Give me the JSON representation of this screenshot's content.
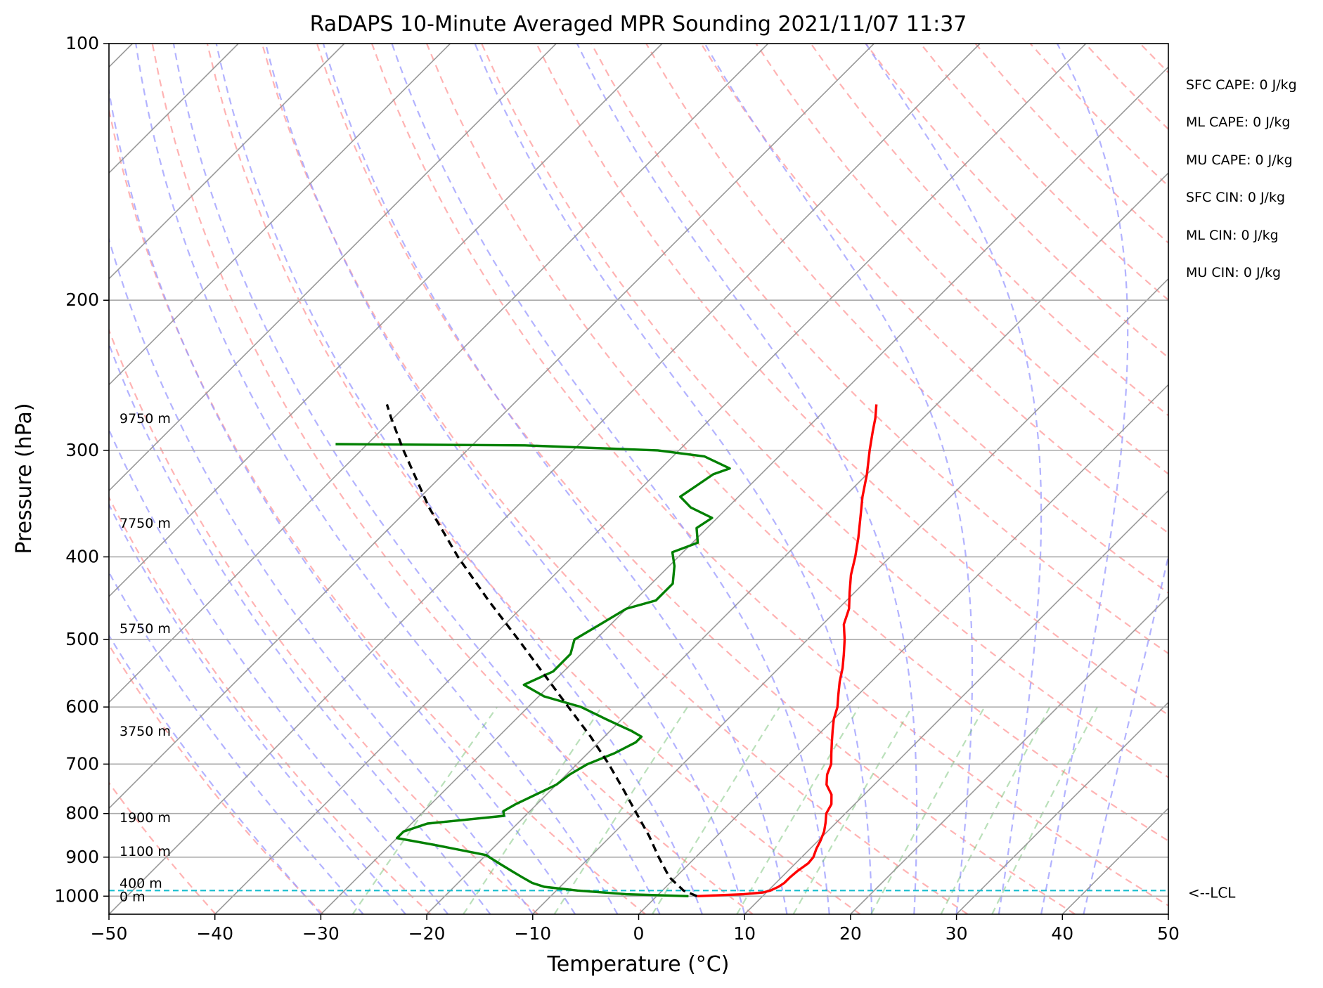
{
  "chart_data": {
    "type": "line",
    "title": "RaDAPS 10-Minute Averaged MPR Sounding 2021/11/07 11:37",
    "xlabel": "Temperature (°C)",
    "ylabel": "Pressure (hPa)",
    "xlim": [
      -50,
      50
    ],
    "ylim": [
      1050,
      100
    ],
    "y_scale": "log",
    "skew": true,
    "grid": true,
    "x_ticks": [
      "−50",
      "−40",
      "−30",
      "−20",
      "−10",
      "0",
      "10",
      "20",
      "30",
      "40",
      "50"
    ],
    "y_ticks": [
      "100",
      "200",
      "300",
      "400",
      "500",
      "600",
      "700",
      "800",
      "900",
      "1000"
    ],
    "height_labels": [
      {
        "text": "9750 m",
        "p": 275
      },
      {
        "text": "7750 m",
        "p": 365
      },
      {
        "text": "5750 m",
        "p": 485
      },
      {
        "text": "3750 m",
        "p": 640
      },
      {
        "text": "1900 m",
        "p": 808
      },
      {
        "text": "1100 m",
        "p": 885
      },
      {
        "text": "400 m",
        "p": 965
      },
      {
        "text": "0 m",
        "p": 1000
      }
    ],
    "lcl": {
      "p": 985,
      "label": "<--LCL"
    },
    "series": [
      {
        "color": "#ff0000",
        "points": [
          {
            "p": 1000,
            "t": 3.8
          },
          {
            "p": 995,
            "t": 8.0
          },
          {
            "p": 990,
            "t": 9.7
          },
          {
            "p": 985,
            "t": 10.2
          },
          {
            "p": 975,
            "t": 10.6
          },
          {
            "p": 965,
            "t": 10.8
          },
          {
            "p": 950,
            "t": 10.8
          },
          {
            "p": 935,
            "t": 10.9
          },
          {
            "p": 915,
            "t": 11.2
          },
          {
            "p": 900,
            "t": 11.1
          },
          {
            "p": 880,
            "t": 10.6
          },
          {
            "p": 860,
            "t": 10.2
          },
          {
            "p": 840,
            "t": 9.7
          },
          {
            "p": 820,
            "t": 9.0
          },
          {
            "p": 800,
            "t": 8.2
          },
          {
            "p": 780,
            "t": 7.8
          },
          {
            "p": 760,
            "t": 6.9
          },
          {
            "p": 740,
            "t": 5.5
          },
          {
            "p": 720,
            "t": 4.6
          },
          {
            "p": 700,
            "t": 4.0
          },
          {
            "p": 680,
            "t": 3.0
          },
          {
            "p": 660,
            "t": 2.0
          },
          {
            "p": 640,
            "t": 1.0
          },
          {
            "p": 620,
            "t": 0.0
          },
          {
            "p": 600,
            "t": -0.8
          },
          {
            "p": 580,
            "t": -1.9
          },
          {
            "p": 560,
            "t": -3.0
          },
          {
            "p": 540,
            "t": -4.0
          },
          {
            "p": 520,
            "t": -5.2
          },
          {
            "p": 500,
            "t": -6.5
          },
          {
            "p": 480,
            "t": -8.0
          },
          {
            "p": 460,
            "t": -9.0
          },
          {
            "p": 440,
            "t": -10.5
          },
          {
            "p": 420,
            "t": -12.0
          },
          {
            "p": 400,
            "t": -13.3
          },
          {
            "p": 380,
            "t": -14.8
          },
          {
            "p": 360,
            "t": -16.5
          },
          {
            "p": 340,
            "t": -18.3
          },
          {
            "p": 320,
            "t": -20.0
          },
          {
            "p": 300,
            "t": -22.0
          },
          {
            "p": 285,
            "t": -23.5
          },
          {
            "p": 275,
            "t": -24.5
          },
          {
            "p": 265,
            "t": -25.7
          }
        ]
      },
      {
        "color": "#008000",
        "points": [
          {
            "p": 1000,
            "t": 3.0
          },
          {
            "p": 995,
            "t": -3.0
          },
          {
            "p": 985,
            "t": -8.0
          },
          {
            "p": 975,
            "t": -11.5
          },
          {
            "p": 965,
            "t": -13.0
          },
          {
            "p": 950,
            "t": -14.5
          },
          {
            "p": 935,
            "t": -16.0
          },
          {
            "p": 915,
            "t": -18.0
          },
          {
            "p": 895,
            "t": -20.0
          },
          {
            "p": 870,
            "t": -26.0
          },
          {
            "p": 855,
            "t": -30.0
          },
          {
            "p": 840,
            "t": -30.0
          },
          {
            "p": 822,
            "t": -28.5
          },
          {
            "p": 805,
            "t": -22.0
          },
          {
            "p": 795,
            "t": -22.5
          },
          {
            "p": 780,
            "t": -22.0
          },
          {
            "p": 760,
            "t": -21.0
          },
          {
            "p": 740,
            "t": -20.0
          },
          {
            "p": 720,
            "t": -19.7
          },
          {
            "p": 700,
            "t": -19.0
          },
          {
            "p": 680,
            "t": -17.5
          },
          {
            "p": 660,
            "t": -16.5
          },
          {
            "p": 650,
            "t": -16.5
          },
          {
            "p": 640,
            "t": -18.0
          },
          {
            "p": 620,
            "t": -21.5
          },
          {
            "p": 600,
            "t": -25.0
          },
          {
            "p": 583,
            "t": -29.5
          },
          {
            "p": 565,
            "t": -32.5
          },
          {
            "p": 545,
            "t": -31.0
          },
          {
            "p": 520,
            "t": -31.0
          },
          {
            "p": 500,
            "t": -32.0
          },
          {
            "p": 480,
            "t": -31.0
          },
          {
            "p": 460,
            "t": -30.0
          },
          {
            "p": 450,
            "t": -28.0
          },
          {
            "p": 430,
            "t": -28.0
          },
          {
            "p": 410,
            "t": -29.5
          },
          {
            "p": 395,
            "t": -31.0
          },
          {
            "p": 385,
            "t": -29.5
          },
          {
            "p": 370,
            "t": -31.0
          },
          {
            "p": 360,
            "t": -30.5
          },
          {
            "p": 350,
            "t": -33.5
          },
          {
            "p": 340,
            "t": -35.5
          },
          {
            "p": 330,
            "t": -35.0
          },
          {
            "p": 320,
            "t": -34.5
          },
          {
            "p": 315,
            "t": -33.5
          },
          {
            "p": 305,
            "t": -37.0
          },
          {
            "p": 300,
            "t": -42.0
          },
          {
            "p": 296,
            "t": -55.0
          },
          {
            "p": 295,
            "t": -73.0
          }
        ]
      },
      {
        "color": "#000000",
        "dashed": true,
        "points": [
          {
            "p": 1000,
            "t": 3.8
          },
          {
            "p": 985,
            "t": 2.0
          },
          {
            "p": 950,
            "t": -0.6
          },
          {
            "p": 900,
            "t": -3.5
          },
          {
            "p": 850,
            "t": -6.4
          },
          {
            "p": 800,
            "t": -9.7
          },
          {
            "p": 750,
            "t": -13.2
          },
          {
            "p": 700,
            "t": -17.0
          },
          {
            "p": 650,
            "t": -21.3
          },
          {
            "p": 600,
            "t": -26.2
          },
          {
            "p": 550,
            "t": -31.5
          },
          {
            "p": 500,
            "t": -37.3
          },
          {
            "p": 450,
            "t": -43.8
          },
          {
            "p": 400,
            "t": -50.8
          },
          {
            "p": 350,
            "t": -58.2
          },
          {
            "p": 300,
            "t": -66.0
          },
          {
            "p": 275,
            "t": -70.2
          },
          {
            "p": 265,
            "t": -71.9
          }
        ]
      }
    ]
  },
  "stats": [
    "SFC CAPE: 0 J/kg",
    "ML CAPE: 0 J/kg",
    "MU CAPE: 0 J/kg",
    "SFC CIN: 0 J/kg",
    "ML CIN: 0 J/kg",
    "MU CIN: 0 J/kg"
  ]
}
